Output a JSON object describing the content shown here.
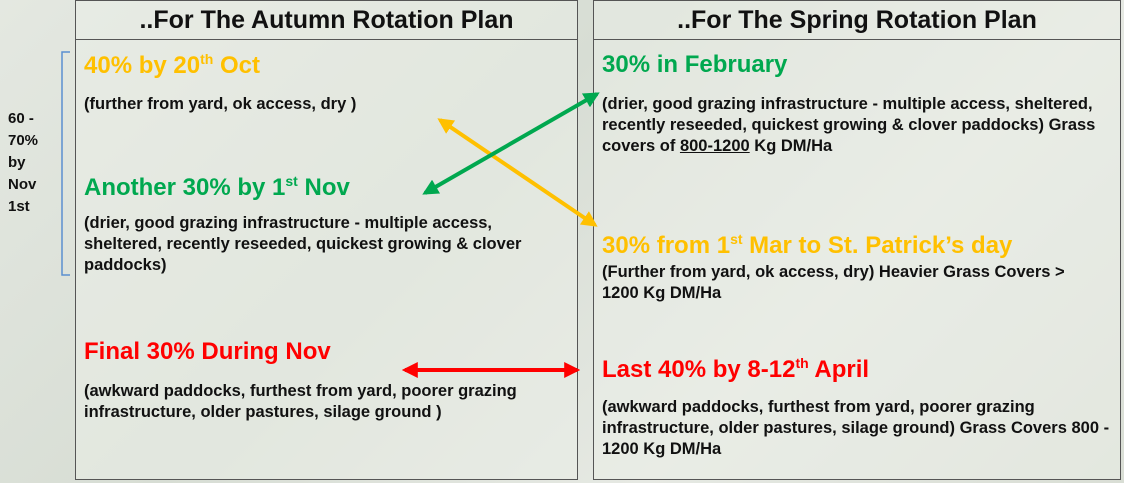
{
  "side_note": "60 - 70% by Nov 1st",
  "autumn": {
    "title": "..For The Autumn Rotation Plan",
    "items": [
      {
        "heading": [
          "40% by 20",
          "th",
          " Oct"
        ],
        "text": [
          "(further from yard, ok access, dry )"
        ]
      },
      {
        "heading": [
          "Another 30% by 1",
          "st",
          " Nov"
        ],
        "text": [
          "(drier, good grazing infrastructure - multiple access, sheltered, recently reseeded, quickest growing & clover paddocks)"
        ]
      },
      {
        "heading": [
          "Final 30% During Nov"
        ],
        "text": [
          "(awkward paddocks, furthest from yard, poorer grazing infrastructure, older pastures, silage ground )"
        ]
      }
    ]
  },
  "spring": {
    "title": "..For The Spring Rotation Plan",
    "items": [
      {
        "heading": [
          "30% in February"
        ],
        "text": [
          "(drier, good grazing infrastructure - multiple access, sheltered, recently reseeded, quickest growing & clover paddocks) Grass covers of ",
          "800-1200",
          " Kg DM/Ha"
        ]
      },
      {
        "heading": [
          "30% from 1",
          "st",
          " Mar to St. Patrick’s day"
        ],
        "text": [
          "(Further from yard, ok access, dry) Heavier Grass Covers > 1200 Kg DM/Ha"
        ]
      },
      {
        "heading": [
          "Last 40% by 8-12",
          "th",
          " April"
        ],
        "text": [
          "(awkward paddocks, furthest from yard, poorer grazing infrastructure, older pastures, silage ground) Grass Covers 800 - 1200 Kg DM/Ha"
        ]
      }
    ]
  }
}
